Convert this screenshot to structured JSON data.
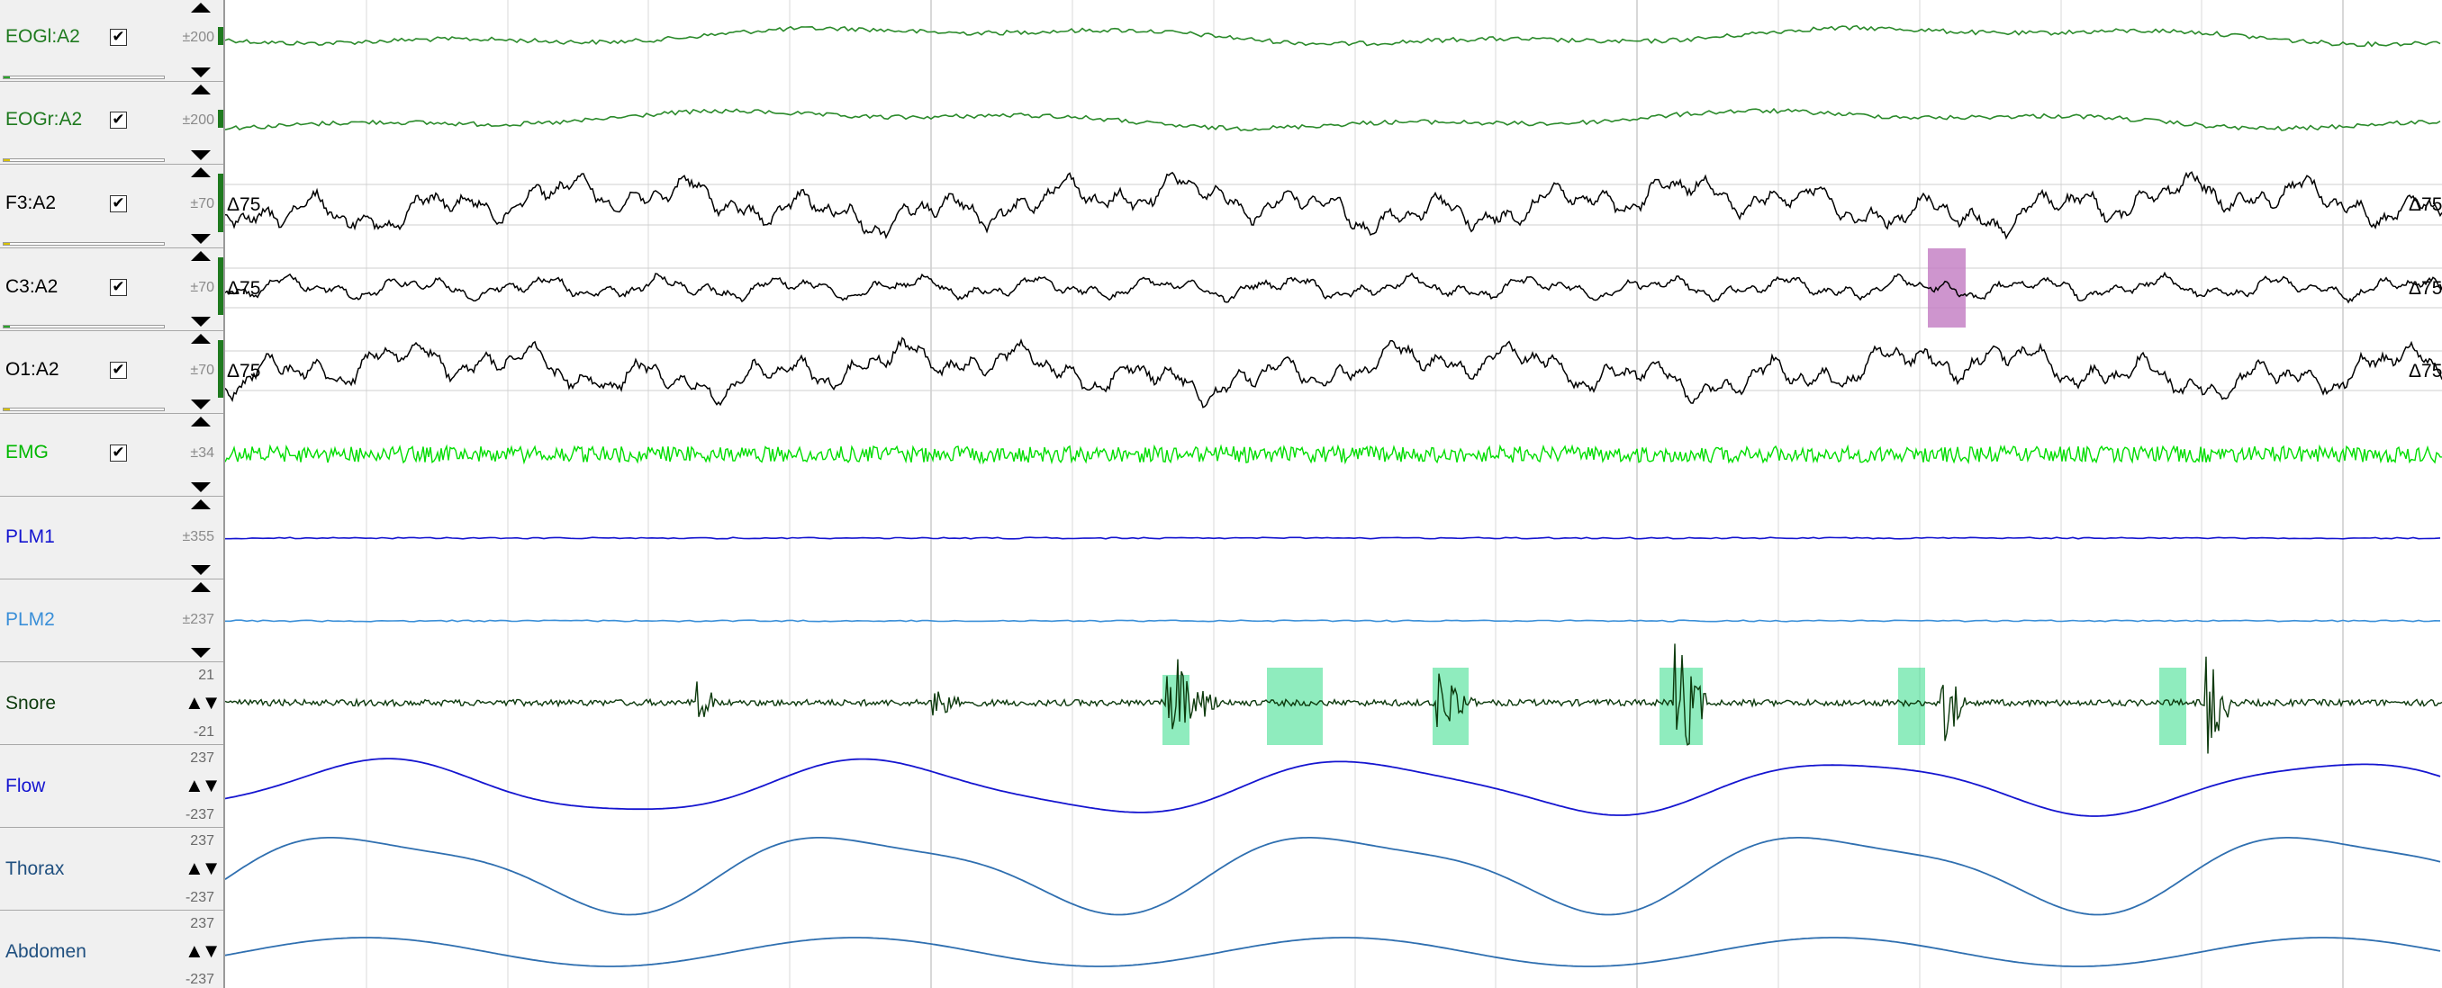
{
  "channels": [
    {
      "name": "EOGl:A2",
      "checked": true,
      "scale": "±200",
      "color": "#1f7a1f",
      "level": 0.04,
      "level_color": "#2aa52a",
      "row_label": "row-eogl"
    },
    {
      "name": "EOGr:A2",
      "checked": true,
      "scale": "±200",
      "color": "#1f7a1f",
      "level": 0.04,
      "level_color": "#d8c200",
      "row_label": "row-eogr"
    },
    {
      "name": "F3:A2",
      "checked": true,
      "scale": "±70",
      "color": "#000000",
      "level": 0.04,
      "level_color": "#d8c200",
      "row_label": "row-f3"
    },
    {
      "name": "C3:A2",
      "checked": true,
      "scale": "±70",
      "color": "#000000",
      "level": 0.04,
      "level_color": "#2aa52a",
      "row_label": "row-c3"
    },
    {
      "name": "O1:A2",
      "checked": true,
      "scale": "±70",
      "color": "#000000",
      "level": 0.04,
      "level_color": "#d8c200",
      "row_label": "row-o1"
    },
    {
      "name": "EMG",
      "checked": true,
      "scale": "±34",
      "color": "#00c800",
      "row_label": "row-emg"
    },
    {
      "name": "PLM1",
      "scale": "±355",
      "color": "#1515d0",
      "row_label": "row-plm1"
    },
    {
      "name": "PLM2",
      "scale": "±237",
      "color": "#3a8fd8",
      "row_label": "row-plm2"
    },
    {
      "name": "Snore",
      "range_top": "21",
      "range_bottom": "-21",
      "color": "#103d10",
      "row_label": "row-snore"
    },
    {
      "name": "Flow",
      "range_top": "237",
      "range_bottom": "-237",
      "color": "#1515d0",
      "row_label": "row-flow"
    },
    {
      "name": "Thorax",
      "range_top": "237",
      "range_bottom": "-237",
      "color": "#1f4f7f",
      "row_label": "row-thorax"
    },
    {
      "name": "Abdomen",
      "range_top": "237",
      "range_bottom": "-237",
      "color": "#1f4f7f",
      "row_label": "row-abdomen"
    }
  ],
  "amplitude_markers": {
    "text": "Δ75"
  },
  "check_glyph": "✔",
  "updown_glyph": "▲▼",
  "colors": {
    "eeg_trace": "#000000",
    "eog_trace": "#2a8a2a",
    "emg_trace": "#00dd00",
    "snore_trace": "#0d3a0d",
    "flow_trace": "#1515d0",
    "effort_trace": "#2f6fb0",
    "plm1_trace": "#1515d0",
    "plm2_trace": "#3a8fd8",
    "arousal_highlight": "#c27ac2",
    "snore_event_highlight": "#33dd88",
    "grid": "#d8d8d8"
  }
}
